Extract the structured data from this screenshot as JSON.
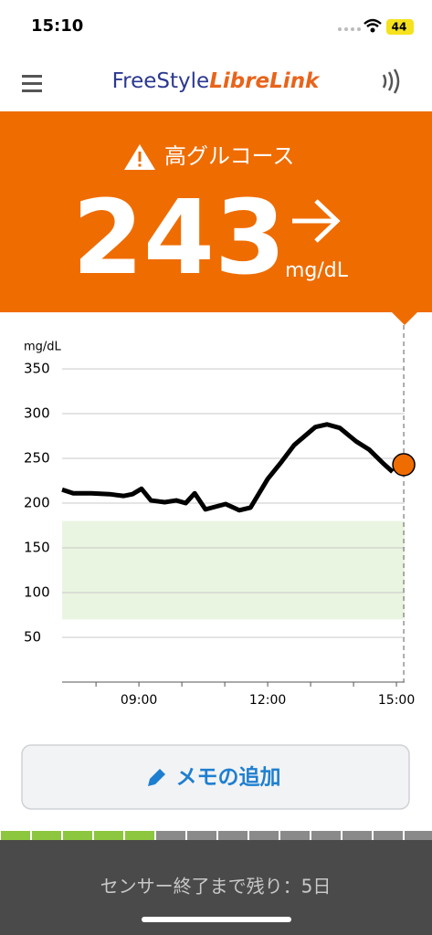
{
  "status_bar": {
    "time": "15:10",
    "battery": "44"
  },
  "header": {
    "logo_part1": "FreeStyle",
    "logo_part2": "LibreLink"
  },
  "alert": {
    "label": "高グルコース",
    "value": 243,
    "unit": "mg/dL"
  },
  "chart_data": {
    "type": "line",
    "y_label": "mg/dL",
    "x": [
      7.21,
      7.47,
      7.89,
      8.32,
      8.64,
      8.85,
      9.06,
      9.28,
      9.6,
      9.87,
      10.09,
      10.3,
      10.55,
      11.02,
      11.34,
      11.6,
      12.0,
      12.32,
      12.62,
      13.11,
      13.38,
      13.68,
      14.06,
      14.36,
      14.7,
      14.91
    ],
    "series": [
      {
        "color": "#000000",
        "values": [
          215,
          211,
          211,
          210,
          208,
          210,
          216,
          203,
          201,
          203,
          200,
          211,
          193,
          199,
          192,
          195,
          227,
          246,
          265,
          285,
          288,
          284,
          269,
          260,
          244,
          235
        ]
      }
    ],
    "current": {
      "x": 15.17,
      "value": 243,
      "color": "#ef6c00"
    },
    "target_range": [
      70,
      180
    ],
    "target_color": "#eaf5e1",
    "xlim": [
      7.21,
      15.19
    ],
    "ylim": [
      0,
      350
    ],
    "xticks": [
      {
        "value": 9,
        "label": "09:00"
      },
      {
        "value": 12,
        "label": "12:00"
      },
      {
        "value": 15,
        "label": "15:00"
      }
    ],
    "x_minor_ticks": [
      8,
      9,
      10,
      11,
      12,
      13,
      14,
      15
    ],
    "yticks": [
      50,
      100,
      150,
      200,
      250,
      300,
      350
    ],
    "grid": true
  },
  "button": {
    "label": "メモの追加"
  },
  "sensor": {
    "text": "センサー終了まで残り：5日"
  }
}
